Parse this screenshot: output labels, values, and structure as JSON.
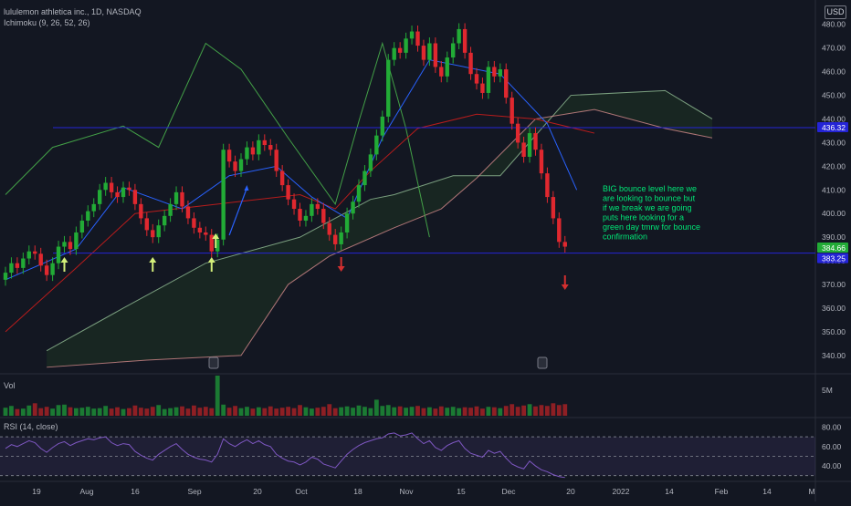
{
  "header": {
    "symbol_line": "lululemon athletica inc., 1D, NASDAQ",
    "indicator_line": "Ichimoku (9, 26, 52, 26)",
    "currency": "USD",
    "volume_label": "Vol",
    "volume_axis_label": "5M",
    "rsi_label": "RSI (14, close)"
  },
  "colors": {
    "background": "#131722",
    "up": "#22ab36",
    "down": "#e0282f",
    "tenkan": "#2962ff",
    "kijun": "#b71c1c",
    "chikou": "#43a047",
    "span_a": "#a5d6a7",
    "span_b": "#ef9a9a",
    "rsi": "#7e57c2",
    "annotation": "#00e676",
    "level_line": "#2424d6",
    "arrow_up": "#d4f07a",
    "arrow_down": "#d32f2f"
  },
  "chart_data": [
    {
      "type": "candlestick",
      "x_labels": [
        "19",
        "Aug",
        "16",
        "Sep",
        "20",
        "Oct",
        "18",
        "Nov",
        "15",
        "Dec",
        "20",
        "2022",
        "14",
        "Feb",
        "14",
        "M"
      ],
      "y_ticks": [
        340,
        350,
        360,
        370,
        380,
        390,
        400,
        410,
        420,
        430,
        440,
        450,
        460,
        470,
        480
      ],
      "ylim": [
        333,
        488
      ],
      "closes": [
        375,
        379,
        377,
        381,
        384,
        383,
        378,
        374,
        379,
        386,
        388,
        385,
        392,
        397,
        401,
        404,
        410,
        413,
        409,
        407,
        411,
        410,
        404,
        398,
        393,
        390,
        395,
        399,
        404,
        409,
        403,
        398,
        394,
        392,
        391,
        384,
        389,
        427,
        422,
        418,
        423,
        428,
        425,
        431,
        429,
        427,
        418,
        412,
        406,
        402,
        397,
        399,
        404,
        402,
        396,
        391,
        387,
        392,
        400,
        405,
        412,
        418,
        425,
        433,
        441,
        465,
        470,
        468,
        474,
        477,
        471,
        465,
        472,
        462,
        458,
        466,
        472,
        478,
        468,
        459,
        455,
        451,
        462,
        458,
        461,
        449,
        438,
        430,
        424,
        434,
        427,
        417,
        407,
        398,
        388,
        386
      ],
      "current_price_label": "384.66",
      "level_price_label": "383.25",
      "top_price_label": "436.32",
      "ichimoku": {
        "tenkan": [
          [
            0,
            372
          ],
          [
            12,
            385
          ],
          [
            20,
            411
          ],
          [
            30,
            402
          ],
          [
            38,
            416
          ],
          [
            46,
            420
          ],
          [
            52,
            407
          ],
          [
            58,
            398
          ],
          [
            64,
            432
          ],
          [
            72,
            465
          ],
          [
            84,
            459
          ],
          [
            92,
            438
          ],
          [
            97,
            410
          ]
        ],
        "kijun": [
          [
            0,
            350
          ],
          [
            12,
            377
          ],
          [
            22,
            400
          ],
          [
            36,
            404
          ],
          [
            50,
            408
          ],
          [
            56,
            402
          ],
          [
            62,
            418
          ],
          [
            70,
            436
          ],
          [
            80,
            442
          ],
          [
            90,
            440
          ],
          [
            100,
            434
          ]
        ],
        "chikou": [
          [
            0,
            408
          ],
          [
            8,
            428
          ],
          [
            20,
            437
          ],
          [
            26,
            428
          ],
          [
            34,
            472
          ],
          [
            40,
            461
          ],
          [
            48,
            432
          ],
          [
            56,
            404
          ],
          [
            60,
            439
          ],
          [
            64,
            472
          ],
          [
            68,
            436
          ],
          [
            72,
            390
          ]
        ],
        "span_a": [
          [
            7,
            342
          ],
          [
            20,
            360
          ],
          [
            34,
            379
          ],
          [
            50,
            390
          ],
          [
            62,
            406
          ],
          [
            66,
            408
          ],
          [
            76,
            416
          ],
          [
            84,
            416
          ],
          [
            96,
            450
          ],
          [
            112,
            452
          ],
          [
            120,
            440
          ]
        ],
        "span_b": [
          [
            7,
            335
          ],
          [
            24,
            338
          ],
          [
            40,
            340
          ],
          [
            48,
            370
          ],
          [
            55,
            382
          ],
          [
            66,
            394
          ],
          [
            74,
            402
          ],
          [
            80,
            415
          ],
          [
            90,
            440
          ],
          [
            100,
            444
          ],
          [
            112,
            436
          ],
          [
            120,
            432
          ]
        ]
      },
      "annotation": "BIG bounce level here we are looking to bounce but if we break we are going puts here looking for a green day tmrw for bounce confirmation",
      "horizontal_levels": [
        436.32,
        383.25
      ]
    },
    {
      "type": "bar",
      "panel": "volume",
      "values": [
        1.8,
        2.2,
        1.5,
        1.6,
        2.3,
        2.8,
        1.7,
        2.0,
        1.6,
        2.4,
        2.5,
        1.9,
        1.7,
        1.8,
        2.0,
        1.6,
        1.7,
        2.2,
        1.6,
        1.9,
        1.5,
        1.7,
        2.3,
        1.8,
        1.6,
        2.0,
        2.4,
        1.5,
        1.7,
        1.9,
        2.1,
        1.6,
        2.3,
        1.8,
        2.0,
        1.7,
        9.0,
        2.5,
        1.8,
        2.2,
        1.7,
        2.0,
        1.6,
        1.9,
        1.7,
        2.1,
        1.6,
        1.8,
        2.0,
        1.7,
        2.4,
        1.9,
        1.6,
        1.8,
        2.0,
        2.6,
        1.7,
        1.9,
        2.1,
        1.8,
        2.3,
        2.0,
        1.7,
        3.6,
        2.2,
        2.4,
        1.9,
        2.1,
        1.8,
        2.0,
        2.2,
        1.7,
        1.9,
        1.6,
        2.1,
        1.8,
        2.0,
        1.7,
        1.9,
        1.8,
        2.1,
        1.6,
        2.0,
        1.9,
        1.7,
        2.2,
        2.6,
        2.0,
        2.3,
        2.6,
        2.1,
        2.4,
        2.2,
        2.8,
        2.4,
        2.6
      ],
      "y_tick": "5M"
    },
    {
      "type": "line",
      "panel": "rsi",
      "name": "RSI (14, close)",
      "y_ticks": [
        40,
        60,
        80
      ],
      "bands": [
        30,
        70
      ],
      "values": [
        58,
        62,
        60,
        63,
        66,
        64,
        58,
        54,
        59,
        63,
        65,
        61,
        64,
        66,
        68,
        67,
        69,
        70,
        64,
        61,
        63,
        62,
        55,
        51,
        48,
        46,
        52,
        56,
        60,
        63,
        57,
        52,
        49,
        47,
        46,
        44,
        52,
        68,
        63,
        60,
        64,
        67,
        63,
        66,
        62,
        60,
        52,
        48,
        45,
        44,
        41,
        44,
        49,
        47,
        42,
        40,
        38,
        45,
        52,
        57,
        61,
        64,
        66,
        68,
        69,
        73,
        74,
        71,
        72,
        74,
        68,
        63,
        66,
        59,
        56,
        61,
        64,
        66,
        58,
        53,
        51,
        49,
        56,
        53,
        55,
        48,
        42,
        39,
        37,
        45,
        40,
        36,
        34,
        31,
        29,
        28
      ]
    }
  ]
}
